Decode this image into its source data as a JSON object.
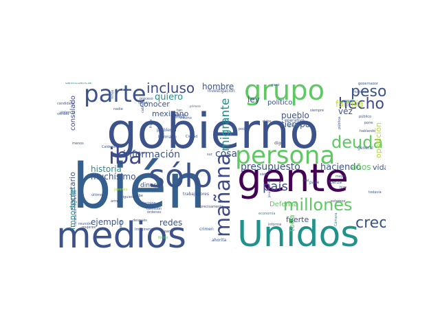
{
  "word_cloud": {
    "background_color": "#ffffff",
    "words": [
      {
        "text": "gobierno",
        "color": "#3b528b"
      },
      {
        "text": "bién",
        "color": "#355f8d"
      },
      {
        "text": "gente",
        "color": "#440154"
      },
      {
        "text": "medios",
        "color": "#3b528b"
      },
      {
        "text": "Unidos",
        "color": "#21918c"
      },
      {
        "text": "grupo",
        "color": "#5ec962"
      },
      {
        "text": "sólo",
        "color": "#3b528b"
      },
      {
        "text": "persona",
        "color": "#5ec962"
      },
      {
        "text": "parte",
        "color": "#3b528b"
      },
      {
        "text": "deuda",
        "color": "#5ec962"
      },
      {
        "text": "millones",
        "color": "#5ec962"
      },
      {
        "text": "iba",
        "color": "#3e4989"
      },
      {
        "text": "peso",
        "color": "#3b528b"
      },
      {
        "text": "incluso",
        "color": "#3e4989"
      },
      {
        "text": "hecho",
        "color": "#3e4989"
      },
      {
        "text": "país",
        "color": "#3e4989"
      },
      {
        "text": "mañana",
        "color": "#3e4989"
      },
      {
        "text": "creo",
        "color": "#3b528b"
      },
      {
        "text": "presupuesto",
        "color": "#3b528b"
      },
      {
        "text": "información",
        "color": "#3b528b"
      },
      {
        "text": "historia",
        "color": "#21918c"
      },
      {
        "text": "haciendo",
        "color": "#3b528b"
      },
      {
        "text": "muchísimo",
        "color": "#3b528b"
      },
      {
        "text": "cosa",
        "color": "#3b528b"
      },
      {
        "text": "migrante",
        "color": "#21918c"
      },
      {
        "text": "hombre",
        "color": "#3b528b"
      },
      {
        "text": "quiero",
        "color": "#21918c"
      },
      {
        "text": "ejemplo",
        "color": "#3b528b"
      },
      {
        "text": "redes",
        "color": "#3b528b"
      },
      {
        "text": "familia",
        "color": "#b5de2b"
      },
      {
        "text": "años",
        "color": "#5ec962"
      },
      {
        "text": "vida",
        "color": "#3b528b"
      },
      {
        "text": "vez",
        "color": "#3b528b"
      },
      {
        "text": "ley",
        "color": "#3b528b"
      },
      {
        "text": "tiempo",
        "color": "#3b528b"
      },
      {
        "text": "pueblo",
        "color": "#3b528b"
      },
      {
        "text": "fuerte",
        "color": "#3b528b"
      },
      {
        "text": "Defensa",
        "color": "#5ec962"
      },
      {
        "text": "secretario",
        "color": "#3b528b"
      },
      {
        "text": "importante",
        "color": "#21918c"
      },
      {
        "text": "consulado",
        "color": "#3e4989"
      },
      {
        "text": "conocer",
        "color": "#3b528b"
      },
      {
        "text": "mexicano",
        "color": "#3b528b"
      },
      {
        "text": "político",
        "color": "#3b528b"
      },
      {
        "text": "opinión",
        "color": "#21918c"
      },
      {
        "text": "oposición",
        "color": "#b5de2b"
      },
      {
        "text": "dinero",
        "color": "#3b528b"
      },
      {
        "text": "toda",
        "color": "#5ec962"
      },
      {
        "text": "delincuencia",
        "color": "#21918c"
      },
      {
        "text": "investigación",
        "color": "#3b528b"
      },
      {
        "text": "problema",
        "color": "#3b528b"
      },
      {
        "text": "hermano",
        "color": "#3b528b"
      },
      {
        "text": "trabajadores",
        "color": "#3b528b"
      },
      {
        "text": "operativo",
        "color": "#3b528b"
      },
      {
        "text": "general",
        "color": "#3b528b"
      },
      {
        "text": "fuerza",
        "color": "#3b528b"
      },
      {
        "text": "digo",
        "color": "#3b528b"
      },
      {
        "text": "pase",
        "color": "#3b528b"
      },
      {
        "text": "Cámara",
        "color": "#21918c"
      },
      {
        "text": "comunicación",
        "color": "#3b528b"
      },
      {
        "text": "ahorita",
        "color": "#3b528b"
      },
      {
        "text": "crimen",
        "color": "#3b528b"
      },
      {
        "text": "reunión",
        "color": "#3b528b"
      },
      {
        "text": "verdad",
        "color": "#3b528b"
      },
      {
        "text": "candidato",
        "color": "#3b528b"
      },
      {
        "text": "seguir",
        "color": "#3b528b"
      },
      {
        "text": "adelante",
        "color": "#3b528b"
      },
      {
        "text": "frase",
        "color": "#3b528b"
      },
      {
        "text": "nadie",
        "color": "#3b528b"
      },
      {
        "text": "Calderón",
        "color": "#3b528b"
      },
      {
        "text": "último",
        "color": "#3b528b"
      },
      {
        "text": "latino",
        "color": "#3b528b"
      },
      {
        "text": "órdenes",
        "color": "#3b528b"
      },
      {
        "text": "comisión",
        "color": "#3b528b"
      },
      {
        "text": "decisión",
        "color": "#3b528b"
      },
      {
        "text": "jóvenes",
        "color": "#b5de2b"
      },
      {
        "text": "precisamente",
        "color": "#3b528b"
      },
      {
        "text": "sabe",
        "color": "#3b528b"
      },
      {
        "text": "Hermanos migrantes",
        "color": "#3b528b"
      },
      {
        "text": "Jesús Ramírez",
        "color": "#3b528b"
      },
      {
        "text": "mejor",
        "color": "#3b528b"
      },
      {
        "text": "todavía",
        "color": "#3b528b"
      },
      {
        "text": "pública",
        "color": "#3b528b"
      },
      {
        "text": "público",
        "color": "#3b528b"
      },
      {
        "text": "hablando",
        "color": "#3b528b"
      },
      {
        "text": "gobernador",
        "color": "#3b528b"
      },
      {
        "text": "nuestros",
        "color": "#3b528b"
      },
      {
        "text": "asunto",
        "color": "#21918c"
      },
      {
        "text": "siempre",
        "color": "#3b528b"
      },
      {
        "text": "debe",
        "color": "#3b528b"
      },
      {
        "text": "poder",
        "color": "#3b528b"
      },
      {
        "text": "Ciudad",
        "color": "#3b528b"
      },
      {
        "text": "Morena",
        "color": "#3b528b"
      },
      {
        "text": "proceso",
        "color": "#3b528b"
      },
      {
        "text": "mismo",
        "color": "#3b528b"
      },
      {
        "text": "primera",
        "color": "#3b528b"
      },
      {
        "text": "fondo",
        "color": "#5ec962"
      },
      {
        "text": "paro",
        "color": "#3b528b"
      },
      {
        "text": "economía",
        "color": "#21918c"
      },
      {
        "text": "informe",
        "color": "#3b528b"
      },
      {
        "text": "político",
        "color": "#3b528b"
      },
      {
        "text": "violencia",
        "color": "#3b528b"
      },
      {
        "text": "mujeres",
        "color": "#3b528b"
      },
      {
        "text": "menos",
        "color": "#3b528b"
      },
      {
        "text": "dicen",
        "color": "#3b528b"
      },
      {
        "text": "siguiente",
        "color": "#3b528b"
      },
      {
        "text": "después",
        "color": "#3b528b"
      },
      {
        "text": "Imaginense",
        "color": "#3b528b"
      },
      {
        "text": "caso",
        "color": "#3b528b"
      },
      {
        "text": "pone",
        "color": "#3b528b"
      },
      {
        "text": "hizo",
        "color": "#3b528b"
      },
      {
        "text": "mal",
        "color": "#3b528b"
      },
      {
        "text": "siete",
        "color": "#3b528b"
      },
      {
        "text": "estamos",
        "color": "#3b528b"
      },
      {
        "text": "cabo",
        "color": "#3b528b"
      },
      {
        "text": "tan",
        "color": "#3b528b"
      },
      {
        "text": "sur",
        "color": "#3b528b"
      },
      {
        "text": "hacia",
        "color": "#3b528b"
      },
      {
        "text": "armas",
        "color": "#3b528b"
      },
      {
        "text": "niños",
        "color": "#3b528b"
      }
    ]
  }
}
